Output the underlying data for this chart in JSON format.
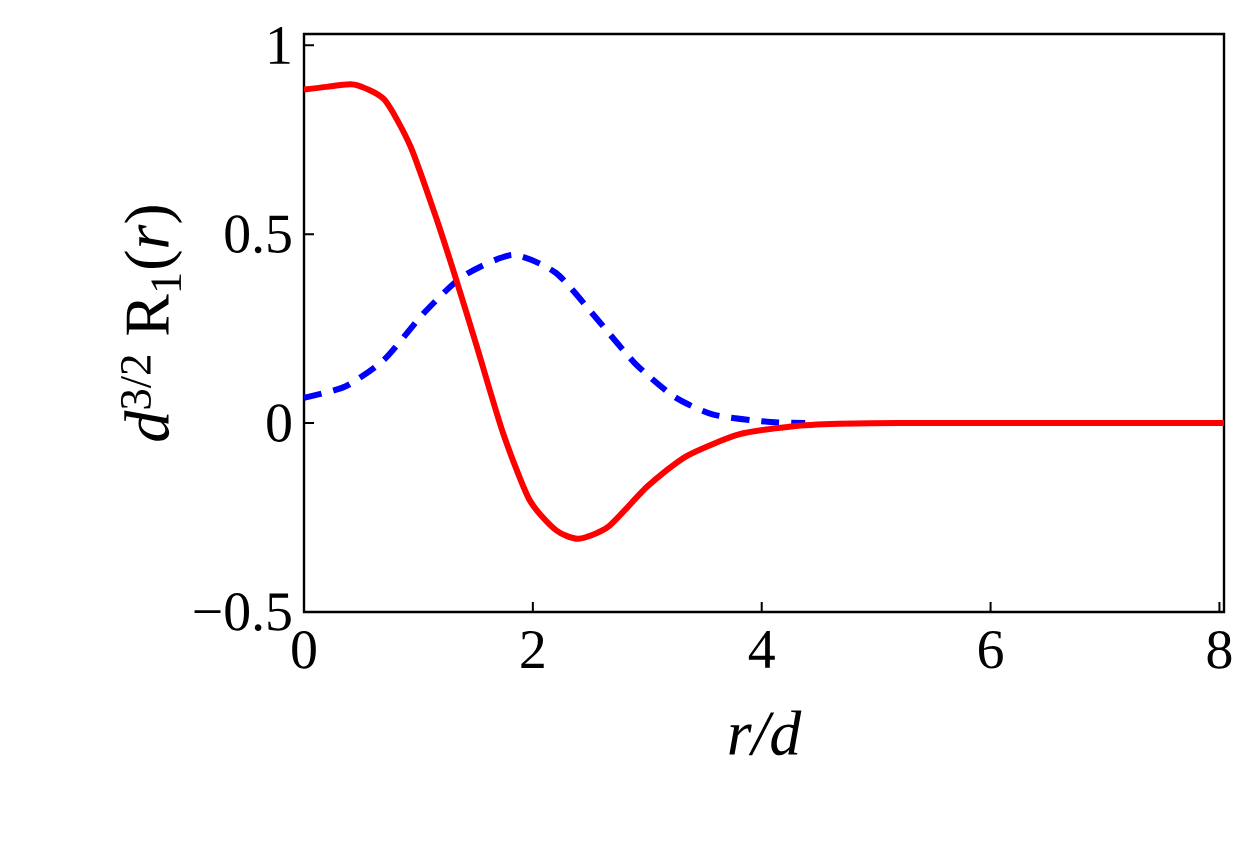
{
  "chart_data": {
    "type": "line",
    "xlabel": "r/d",
    "ylabel": "*d*$^{3/2}$ R$_{1}$(*r*)",
    "xlim": [
      0,
      8.04
    ],
    "ylim": [
      -0.5,
      1.03
    ],
    "xticks": [
      0,
      2,
      4,
      6,
      8
    ],
    "yticks": [
      {
        "value": -0.5,
        "label": "−0.5"
      },
      0,
      0.5,
      1
    ],
    "grid": false,
    "marker": "none",
    "series": [
      {
        "color": "#ff0000",
        "line_style": "solid",
        "x": [
          0,
          0.2,
          0.44,
          0.7,
          0.93,
          1.16,
          1.33,
          1.51,
          1.74,
          1.97,
          2.2,
          2.4,
          2.66,
          3.0,
          3.34,
          3.8,
          4.26,
          4.67,
          5.2,
          6,
          7,
          8.04
        ],
        "values": [
          0.883,
          0.89,
          0.896,
          0.857,
          0.733,
          0.539,
          0.38,
          0.203,
          -0.027,
          -0.203,
          -0.283,
          -0.306,
          -0.274,
          -0.168,
          -0.088,
          -0.03,
          -0.009,
          -0.002,
          0,
          0,
          0,
          0
        ]
      },
      {
        "color": "#0000ff",
        "line_style": "dashed",
        "x": [
          0,
          0.36,
          0.7,
          1.05,
          1.39,
          1.82,
          2.2,
          2.54,
          2.89,
          3.23,
          3.57,
          4.03,
          4.38
        ],
        "values": [
          0.067,
          0.097,
          0.168,
          0.292,
          0.389,
          0.445,
          0.398,
          0.283,
          0.159,
          0.071,
          0.023,
          0.004,
          0
        ]
      }
    ]
  }
}
